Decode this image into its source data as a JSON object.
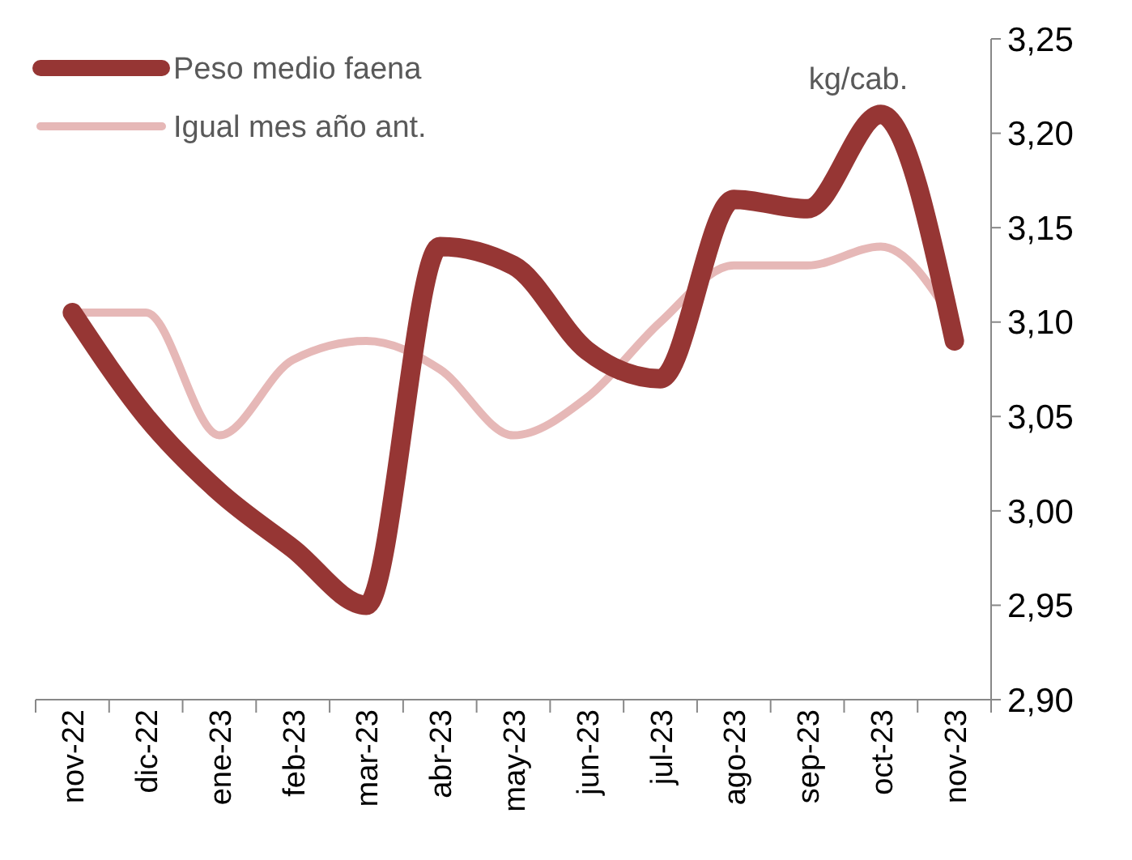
{
  "chart_data": {
    "type": "line",
    "categories": [
      "nov-22",
      "dic-22",
      "ene-23",
      "feb-23",
      "mar-23",
      "abr-23",
      "may-23",
      "jun-23",
      "jul-23",
      "ago-23",
      "sep-23",
      "oct-23",
      "nov-23"
    ],
    "series": [
      {
        "name": "Peso medio faena",
        "color": "#963634",
        "values": [
          3.105,
          3.05,
          3.01,
          2.98,
          2.95,
          3.14,
          3.13,
          3.085,
          3.07,
          3.165,
          3.16,
          3.21,
          3.09
        ]
      },
      {
        "name": "Igual mes año ant.",
        "color": "#e6b8b7",
        "values": [
          3.105,
          3.105,
          3.04,
          3.08,
          3.09,
          3.075,
          3.04,
          3.06,
          3.1,
          3.13,
          3.13,
          3.14,
          3.1
        ]
      }
    ],
    "ylim": [
      2.9,
      3.25
    ],
    "yticks": [
      {
        "value": 2.9,
        "label": "2,90"
      },
      {
        "value": 2.95,
        "label": "2,95"
      },
      {
        "value": 3.0,
        "label": "3,00"
      },
      {
        "value": 3.05,
        "label": "3,05"
      },
      {
        "value": 3.1,
        "label": "3,10"
      },
      {
        "value": 3.15,
        "label": "3,15"
      },
      {
        "value": 3.2,
        "label": "3,20"
      },
      {
        "value": 3.25,
        "label": "3,25"
      }
    ],
    "annotations": [
      "kg/cab."
    ],
    "legend": "top left",
    "grid": false,
    "marker": "none",
    "line_style": "solid"
  }
}
